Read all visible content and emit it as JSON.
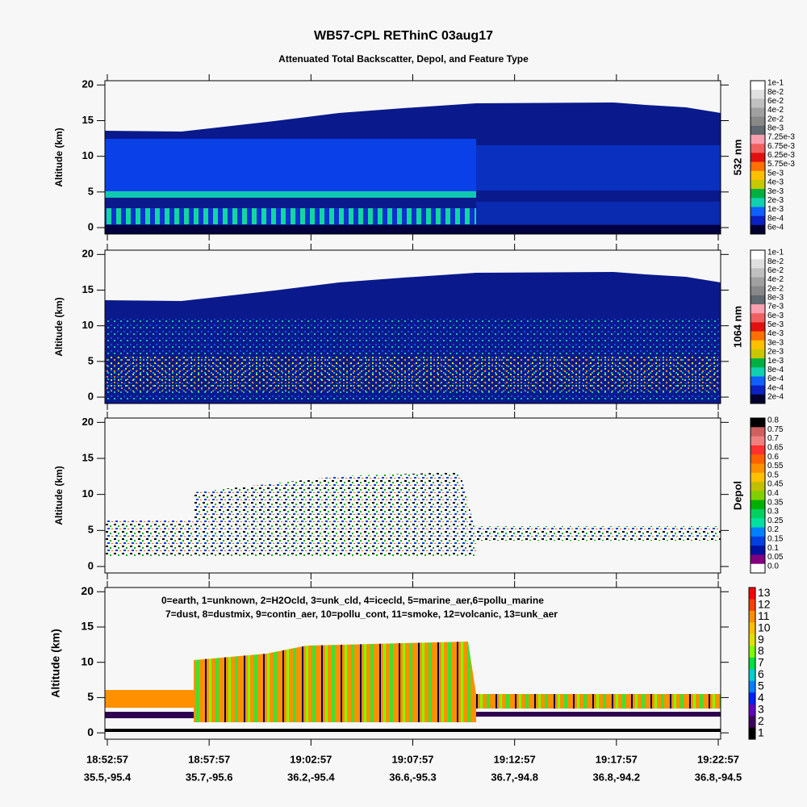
{
  "title": "WB57-CPL REThinC 03aug17",
  "subtitle": "Attenuated Total Backscatter, Depol, and Feature Type",
  "chart_data": [
    {
      "type": "heatmap",
      "ylabel": "Altitude (km)",
      "ylim": [
        -0.9,
        20.6
      ],
      "yticks": [
        0,
        5,
        10,
        15,
        20
      ],
      "colorbar_label": "532 nm",
      "colorbar_ticks": [
        {
          "value": 0.1,
          "label": "1e-1"
        },
        {
          "value": 0.08,
          "label": "8e-2"
        },
        {
          "value": 0.06,
          "label": "6e-2"
        },
        {
          "value": 0.04,
          "label": "4e-2"
        },
        {
          "value": 0.02,
          "label": "2e-2"
        },
        {
          "value": 0.008,
          "label": "8e-3"
        },
        {
          "value": 0.00725,
          "label": "7.25e-3"
        },
        {
          "value": 0.00675,
          "label": "6.75e-3"
        },
        {
          "value": 0.00625,
          "label": "6.25e-3"
        },
        {
          "value": 0.00575,
          "label": "5.75e-3"
        },
        {
          "value": 0.005,
          "label": "5e-3"
        },
        {
          "value": 0.004,
          "label": "4e-3"
        },
        {
          "value": 0.003,
          "label": "3e-3"
        },
        {
          "value": 0.002,
          "label": "2e-3"
        },
        {
          "value": 0.001,
          "label": "1e-3"
        },
        {
          "value": 0.0008,
          "label": "8e-4"
        },
        {
          "value": 0.0006,
          "label": "6e-4"
        }
      ],
      "colorbar_colors": [
        "#ffffff",
        "#e0e0e0",
        "#c0c0c0",
        "#a0a0a0",
        "#888888",
        "#606870",
        "#f8a0b0",
        "#f06060",
        "#e01010",
        "#ff7000",
        "#ffc000",
        "#c8c800",
        "#00b040",
        "#10d0b0",
        "#1060ff",
        "#0a20c0",
        "#000030"
      ]
    },
    {
      "type": "heatmap",
      "ylabel": "Altitude (km)",
      "ylim": [
        -0.9,
        20.6
      ],
      "yticks": [
        0,
        5,
        10,
        15,
        20
      ],
      "colorbar_label": "1064 nm",
      "colorbar_ticks": [
        {
          "value": 0.1,
          "label": "1e-1"
        },
        {
          "value": 0.08,
          "label": "8e-2"
        },
        {
          "value": 0.06,
          "label": "6e-2"
        },
        {
          "value": 0.04,
          "label": "4e-2"
        },
        {
          "value": 0.02,
          "label": "2e-2"
        },
        {
          "value": 0.008,
          "label": "8e-3"
        },
        {
          "value": 0.007,
          "label": "7e-3"
        },
        {
          "value": 0.006,
          "label": "6e-3"
        },
        {
          "value": 0.005,
          "label": "5e-3"
        },
        {
          "value": 0.004,
          "label": "4e-3"
        },
        {
          "value": 0.003,
          "label": "3e-3"
        },
        {
          "value": 0.002,
          "label": "2e-3"
        },
        {
          "value": 0.001,
          "label": "1e-3"
        },
        {
          "value": 0.0008,
          "label": "8e-4"
        },
        {
          "value": 0.0006,
          "label": "6e-4"
        },
        {
          "value": 0.0004,
          "label": "4e-4"
        },
        {
          "value": 0.0002,
          "label": "2e-4"
        }
      ],
      "colorbar_colors": [
        "#ffffff",
        "#e0e0e0",
        "#c0c0c0",
        "#a0a0a0",
        "#888888",
        "#606870",
        "#f8a0b0",
        "#f06060",
        "#e01010",
        "#ff7000",
        "#ffc000",
        "#c8c800",
        "#00b040",
        "#10d0b0",
        "#1060ff",
        "#0a20c0",
        "#000030"
      ]
    },
    {
      "type": "heatmap",
      "ylabel": "Altitude (km)",
      "ylim": [
        -0.9,
        20.6
      ],
      "yticks": [
        0,
        5,
        10,
        15,
        20
      ],
      "colorbar_label": "Depol",
      "colorbar_ticks": [
        0.8,
        0.75,
        0.7,
        0.65,
        0.6,
        0.55,
        0.5,
        0.45,
        0.4,
        0.35,
        0.3,
        0.25,
        0.2,
        0.15,
        0.1,
        0.05,
        {
          "value": 0,
          "label": "0.0"
        }
      ],
      "colorbar_colors": [
        "#000000",
        "#d06060",
        "#f08080",
        "#ff3030",
        "#ff6000",
        "#ff9000",
        "#ffc000",
        "#c0c000",
        "#80d000",
        "#00b000",
        "#00d060",
        "#00e0a0",
        "#0080ff",
        "#0040e0",
        "#0010a0",
        "#800080",
        "#ffffff"
      ]
    },
    {
      "type": "heatmap",
      "ylabel": "Altitude (km)",
      "ylim": [
        -0.9,
        20.6
      ],
      "yticks": [
        0,
        5,
        10,
        15,
        20
      ],
      "annotations": [
        "0=earth, 1=unknown, 2=H2Ocld, 3=unk_cld, 4=icecld, 5=marine_aer,6=pollu_marine",
        "7=dust, 8=dustmix, 9=contin_aer, 10=pollu_cont, 11=smoke, 12=volcanic, 13=unk_aer"
      ],
      "colorbar_ticks": [
        13,
        12,
        11,
        10,
        9,
        8,
        7,
        6,
        5,
        4,
        3,
        2,
        1
      ],
      "colorbar_colors": [
        "#ff0000",
        "#ff4000",
        "#ff9000",
        "#ffc000",
        "#e0e000",
        "#80ff00",
        "#00e040",
        "#00d0d0",
        "#0080ff",
        "#0020ff",
        "#6000c0",
        "#400060",
        "#000000"
      ],
      "categories": [
        "18:52:57",
        "18:57:57",
        "19:02:57",
        "19:07:57",
        "19:12:57",
        "19:17:57",
        "19:22:57"
      ],
      "category_sublabels": [
        "35.5,-95.4",
        "35.7,-95.6",
        "36.2,-95.4",
        "36.6,-95.3",
        "36.7,-94.8",
        "36.8,-94.2",
        "36.8,-94.5"
      ]
    }
  ]
}
